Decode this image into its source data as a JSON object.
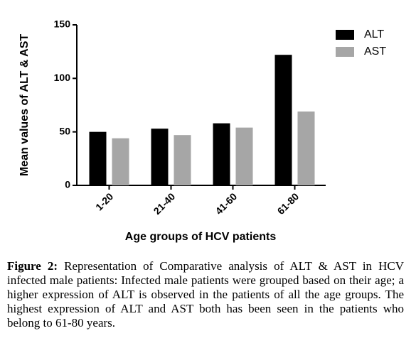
{
  "chart_data": {
    "type": "bar",
    "y_label": "Mean values of ALT & AST",
    "x_label": "Age groups of HCV patients",
    "categories": [
      "1-20",
      "21-40",
      "41-60",
      "61-80"
    ],
    "series": [
      {
        "name": "ALT",
        "color": "#000000",
        "values": [
          50,
          53,
          58,
          122
        ]
      },
      {
        "name": "AST",
        "color": "#a6a6a6",
        "values": [
          44,
          47,
          54,
          69
        ]
      }
    ],
    "ylim": [
      0,
      150
    ],
    "yticks": [
      0,
      50,
      100,
      150
    ],
    "legend": "top-right"
  },
  "caption": {
    "label": "Figure 2:",
    "text": "Representation of Comparative analysis of ALT & AST in HCV infected male patients: Infected male patients were grouped based on their age; a higher expression of ALT is observed in the patients of all the age groups. The highest expression of ALT and AST both has been seen in the patients who belong to 61-80 years."
  }
}
